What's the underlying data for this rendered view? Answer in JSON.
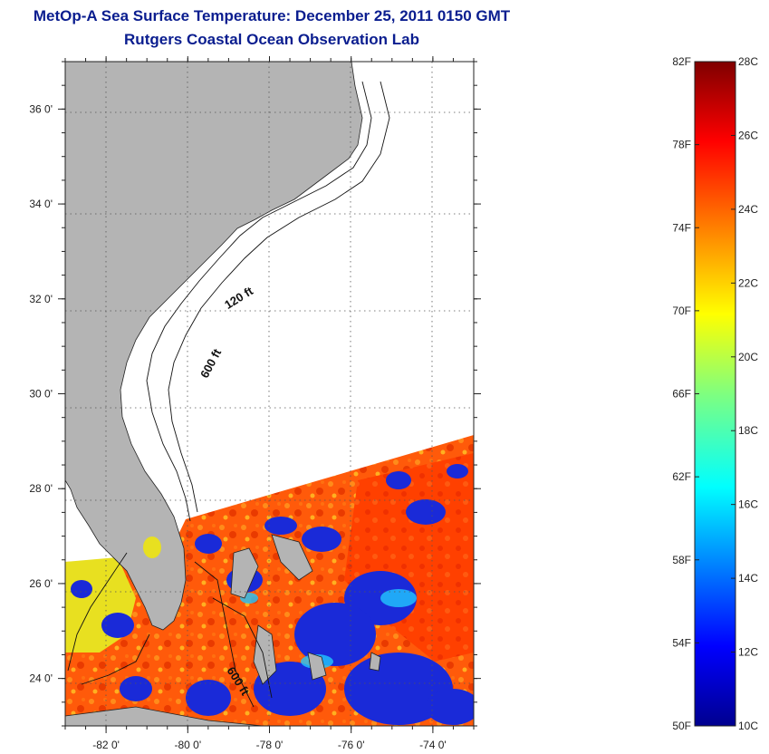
{
  "title": {
    "line1": "MetOp-A Sea Surface Temperature:  December 25, 2011 0150 GMT",
    "line2": "Rutgers Coastal Ocean Observation Lab"
  },
  "map": {
    "lon_range": [
      -83,
      -73
    ],
    "lat_range": [
      23,
      37
    ],
    "lon_ticks": [
      {
        "value": -82,
        "label": "-82 0'"
      },
      {
        "value": -80,
        "label": "-80 0'"
      },
      {
        "value": -78,
        "label": "-78 0'"
      },
      {
        "value": -76,
        "label": "-76 0'"
      },
      {
        "value": -74,
        "label": "-74 0'"
      }
    ],
    "lat_ticks": [
      {
        "value": 24,
        "label": "24 0'"
      },
      {
        "value": 26,
        "label": "26 0'"
      },
      {
        "value": 28,
        "label": "28 0'"
      },
      {
        "value": 30,
        "label": "30 0'"
      },
      {
        "value": 32,
        "label": "32 0'"
      },
      {
        "value": 34,
        "label": "34 0'"
      },
      {
        "value": 36,
        "label": "36 0'"
      }
    ],
    "contour_labels": [
      {
        "text": "120 ft",
        "lon": -78.7,
        "lat": 31.95,
        "angle": -32
      },
      {
        "text": "600 ft",
        "lon": -79.35,
        "lat": 30.6,
        "angle": -62
      },
      {
        "text": "600 ft",
        "lon": -78.85,
        "lat": 23.9,
        "angle": 58
      }
    ],
    "land_color": "#b4b4b4",
    "grid": "dotted"
  },
  "colorbar": {
    "fahrenheit_labels": [
      "82F",
      "78F",
      "74F",
      "70F",
      "66F",
      "62F",
      "58F",
      "54F",
      "50F"
    ],
    "celsius_labels": [
      "28C",
      "26C",
      "24C",
      "22C",
      "20C",
      "18C",
      "16C",
      "14C",
      "12C",
      "10C"
    ],
    "range_c": [
      10,
      28
    ],
    "colormap": "jet"
  }
}
